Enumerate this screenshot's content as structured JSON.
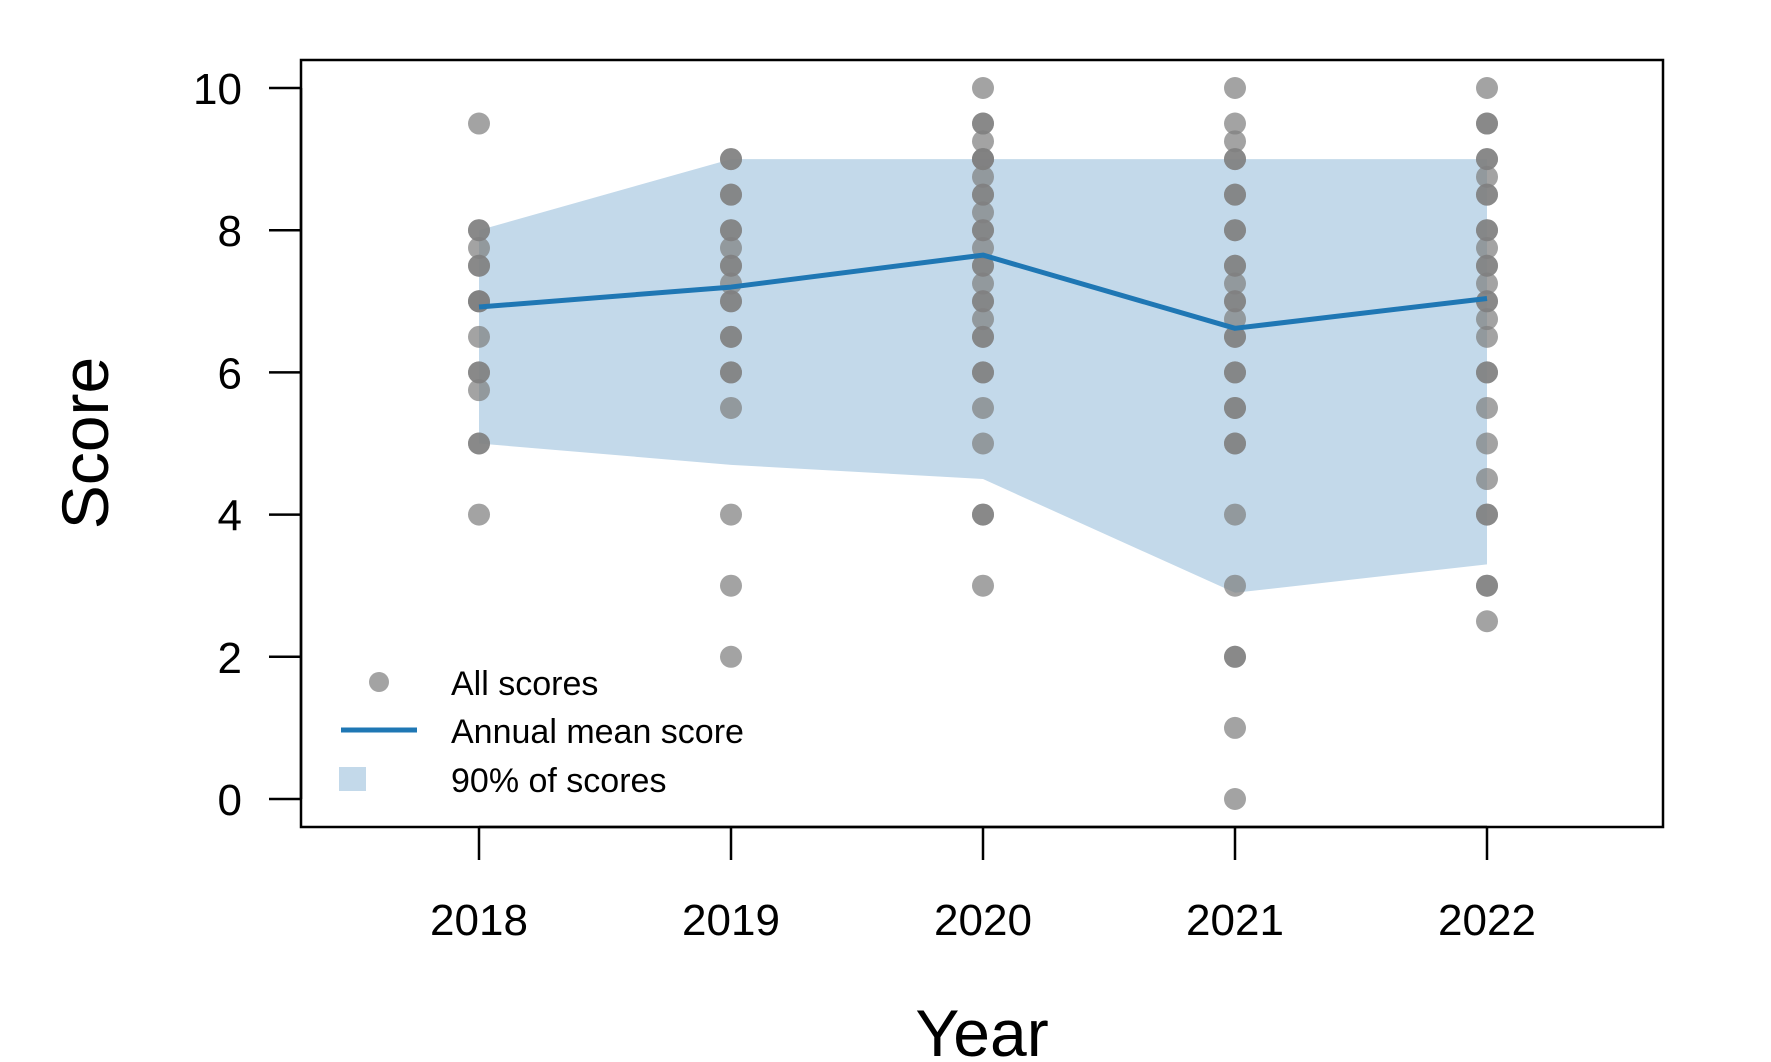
{
  "chart_data": {
    "type": "scatter",
    "title": "",
    "xlabel": "Year",
    "ylabel": "Score",
    "categories": [
      "2018",
      "2019",
      "2020",
      "2021",
      "2022"
    ],
    "ylim": [
      0,
      10
    ],
    "yticks": [
      0,
      2,
      4,
      6,
      8,
      10
    ],
    "grid": false,
    "legend_position": "bottom-left",
    "colors": {
      "points": "#808080",
      "mean_line": "#1f77b4",
      "band": "#c3d9ea"
    },
    "series": [
      {
        "name": "All scores",
        "kind": "points",
        "points": {
          "2018": [
            9.5,
            8,
            8,
            7.75,
            7.5,
            7.5,
            7,
            7,
            7,
            6.5,
            6,
            6,
            5.75,
            5,
            5,
            4
          ],
          "2019": [
            9,
            9,
            8.5,
            8.5,
            8,
            8,
            7.75,
            7.5,
            7.5,
            7.25,
            7,
            7,
            6.5,
            6.5,
            6,
            6,
            5.5,
            4,
            3,
            2
          ],
          "2020": [
            10,
            9.5,
            9.5,
            9.25,
            9,
            9,
            9,
            8.75,
            8.5,
            8.5,
            8.25,
            8,
            8,
            7.75,
            7.5,
            7.5,
            7.25,
            7,
            7,
            6.75,
            6.5,
            6.5,
            6,
            6,
            5.5,
            5,
            4,
            4,
            3
          ],
          "2021": [
            10,
            9.5,
            9.25,
            9,
            9,
            8.5,
            8.5,
            8,
            8,
            7.5,
            7.5,
            7.25,
            7,
            7,
            6.75,
            6.5,
            6.5,
            6,
            6,
            5.5,
            5.5,
            5,
            5,
            4,
            3,
            2,
            2,
            1,
            0
          ],
          "2022": [
            10,
            9.5,
            9.5,
            9,
            9,
            8.75,
            8.5,
            8.5,
            8,
            8,
            7.75,
            7.5,
            7.5,
            7.25,
            7,
            7,
            6.75,
            6.5,
            6,
            6,
            5.5,
            5,
            4.5,
            4,
            4,
            3,
            3,
            2.5
          ]
        }
      },
      {
        "name": "Annual mean score",
        "kind": "line",
        "values": [
          6.92,
          7.2,
          7.65,
          6.62,
          7.04
        ]
      },
      {
        "name": "90% of scores",
        "kind": "band",
        "lower": [
          5.0,
          4.7,
          4.5,
          2.9,
          3.3
        ],
        "upper": [
          8.0,
          9.0,
          9.0,
          9.0,
          9.0
        ]
      }
    ]
  }
}
